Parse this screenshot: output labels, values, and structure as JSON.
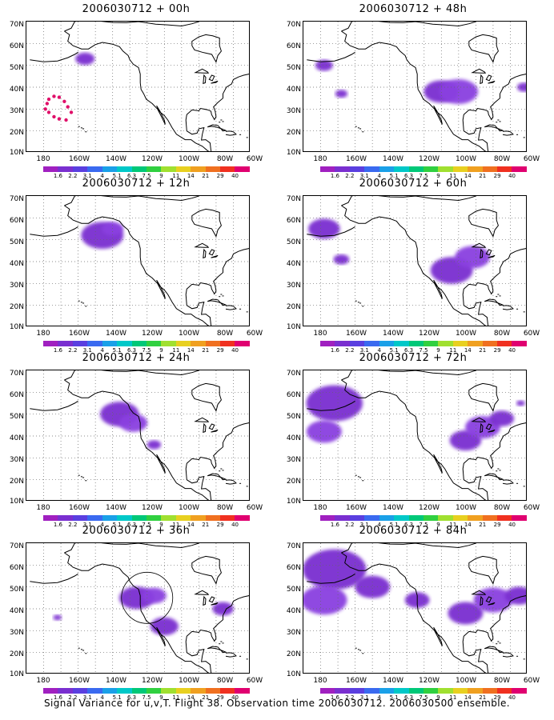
{
  "panels": [
    {
      "title": "2006030712 + 00h",
      "blobs": [
        [
          -156,
          53,
          0.55,
          "#7a2fd0"
        ]
      ],
      "dots": true,
      "circle": false
    },
    {
      "title": "2006030712 + 12h",
      "blobs": [
        [
          -146,
          52,
          1.2,
          "#7a2fd0"
        ],
        [
          -140,
          55,
          0.6,
          "#8a3fe0"
        ]
      ],
      "dots": false,
      "circle": false
    },
    {
      "title": "2006030712 + 24h",
      "blobs": [
        [
          -136,
          50,
          1.1,
          "#7a2fd0"
        ],
        [
          -128,
          46,
          0.8,
          "#8a3fe0"
        ],
        [
          -116,
          36,
          0.4,
          "#7a2fd0"
        ]
      ],
      "dots": false,
      "circle": false
    },
    {
      "title": "2006030712 + 36h",
      "blobs": [
        [
          -126,
          45,
          1.0,
          "#7a2fd0"
        ],
        [
          -116,
          46,
          0.7,
          "#8a3fe0"
        ],
        [
          -110,
          32,
          0.8,
          "#7a2fd0"
        ],
        [
          -76,
          40,
          0.6,
          "#7a2fd0"
        ],
        [
          -172,
          36,
          0.25,
          "#7a2fd0"
        ]
      ],
      "dots": false,
      "circle": true
    },
    {
      "title": "2006030712 + 48h",
      "blobs": [
        [
          -110,
          38,
          1.0,
          "#7a2fd0"
        ],
        [
          -100,
          38,
          1.1,
          "#8a3fe0"
        ],
        [
          -168,
          37,
          0.35,
          "#7a2fd0"
        ],
        [
          -178,
          50,
          0.5,
          "#7a2fd0"
        ],
        [
          -62,
          40,
          0.4,
          "#7a2fd0"
        ]
      ],
      "dots": false,
      "circle": false
    },
    {
      "title": "2006030712 + 60h",
      "blobs": [
        [
          -104,
          36,
          1.2,
          "#7a2fd0"
        ],
        [
          -92,
          42,
          1.0,
          "#8a3fe0"
        ],
        [
          -168,
          41,
          0.45,
          "#7a2fd0"
        ],
        [
          -178,
          55,
          0.9,
          "#7a2fd0"
        ]
      ],
      "dots": false,
      "circle": false
    },
    {
      "title": "2006030712 + 72h",
      "blobs": [
        [
          -172,
          55,
          1.6,
          "#7a2fd0"
        ],
        [
          -178,
          42,
          1.0,
          "#8a3fe0"
        ],
        [
          -96,
          38,
          0.9,
          "#7a2fd0"
        ],
        [
          -86,
          44,
          1.0,
          "#8a3fe0"
        ],
        [
          -75,
          48,
          0.7,
          "#7a2fd0"
        ],
        [
          -64,
          55,
          0.25,
          "#7a2fd0"
        ]
      ],
      "dots": false,
      "circle": false
    },
    {
      "title": "2006030712 + 84h",
      "blobs": [
        [
          -172,
          58,
          1.8,
          "#7a2fd0"
        ],
        [
          -178,
          44,
          1.3,
          "#8a3fe0"
        ],
        [
          -150,
          50,
          1.0,
          "#7a2fd0"
        ],
        [
          -124,
          44,
          0.7,
          "#7a2fd0"
        ],
        [
          -96,
          38,
          1.0,
          "#7a2fd0"
        ],
        [
          -80,
          44,
          1.1,
          "#8a3fe0"
        ],
        [
          -65,
          46,
          0.8,
          "#7a2fd0"
        ]
      ],
      "dots": false,
      "circle": false
    }
  ],
  "lat_labels": [
    "70N",
    "60N",
    "50N",
    "40N",
    "30N",
    "20N",
    "10N"
  ],
  "lon_labels": [
    "180",
    "160W",
    "140W",
    "120W",
    "100W",
    "80W",
    "60W"
  ],
  "colorbar_labels": [
    "1.6",
    "2.2",
    "3.1",
    "4",
    "5.1",
    "6.3",
    "7.5",
    "9",
    "11",
    "14",
    "21",
    "29",
    "40"
  ],
  "colorbar_colors": [
    "#a020c0",
    "#7a2fd0",
    "#5a3fe0",
    "#3a6af0",
    "#1aa0e8",
    "#00c8c8",
    "#00c878",
    "#30d040",
    "#a0e030",
    "#e8d020",
    "#f0a020",
    "#f07020",
    "#f03020",
    "#e00070"
  ],
  "footer": "Signal Variance for u,v,T. Flight 38. Observation time 2006030712. 2006030500 ensemble."
}
